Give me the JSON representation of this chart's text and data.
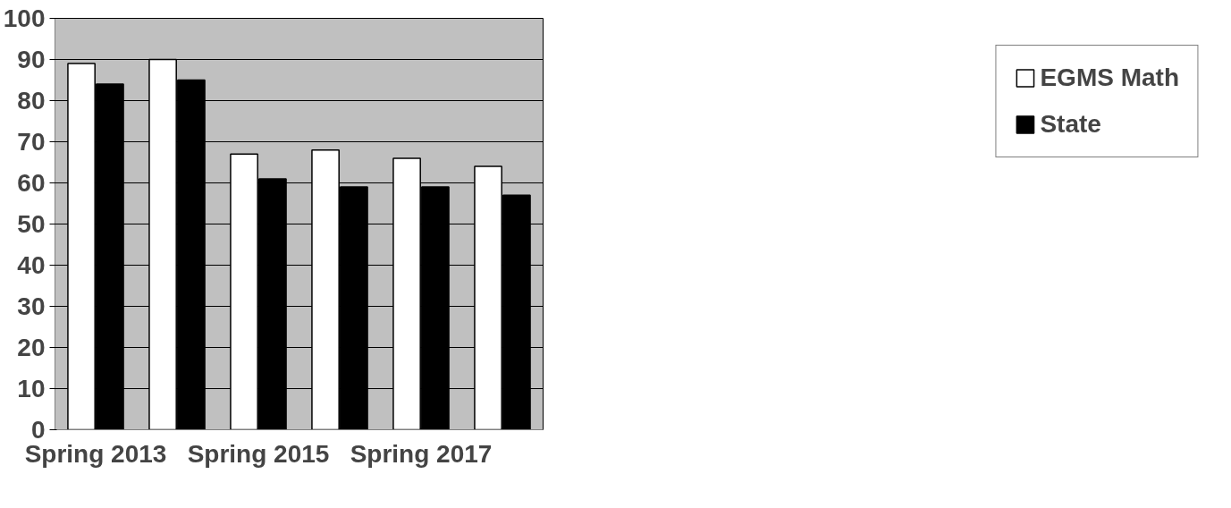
{
  "chart_data": {
    "type": "bar",
    "categories": [
      "Spring 2013",
      null,
      "Spring 2015",
      null,
      "Spring 2017",
      null
    ],
    "series": [
      {
        "name": "EGMS Math",
        "color": "#ffffff",
        "values": [
          89,
          90,
          67,
          68,
          66,
          64
        ]
      },
      {
        "name": "State",
        "color": "#000000",
        "values": [
          84,
          85,
          61,
          59,
          59,
          57
        ]
      }
    ],
    "ylim": [
      0,
      100
    ],
    "yticks": [
      0,
      10,
      20,
      30,
      40,
      50,
      60,
      70,
      80,
      90,
      100
    ],
    "grid": "y",
    "legend": "right"
  }
}
